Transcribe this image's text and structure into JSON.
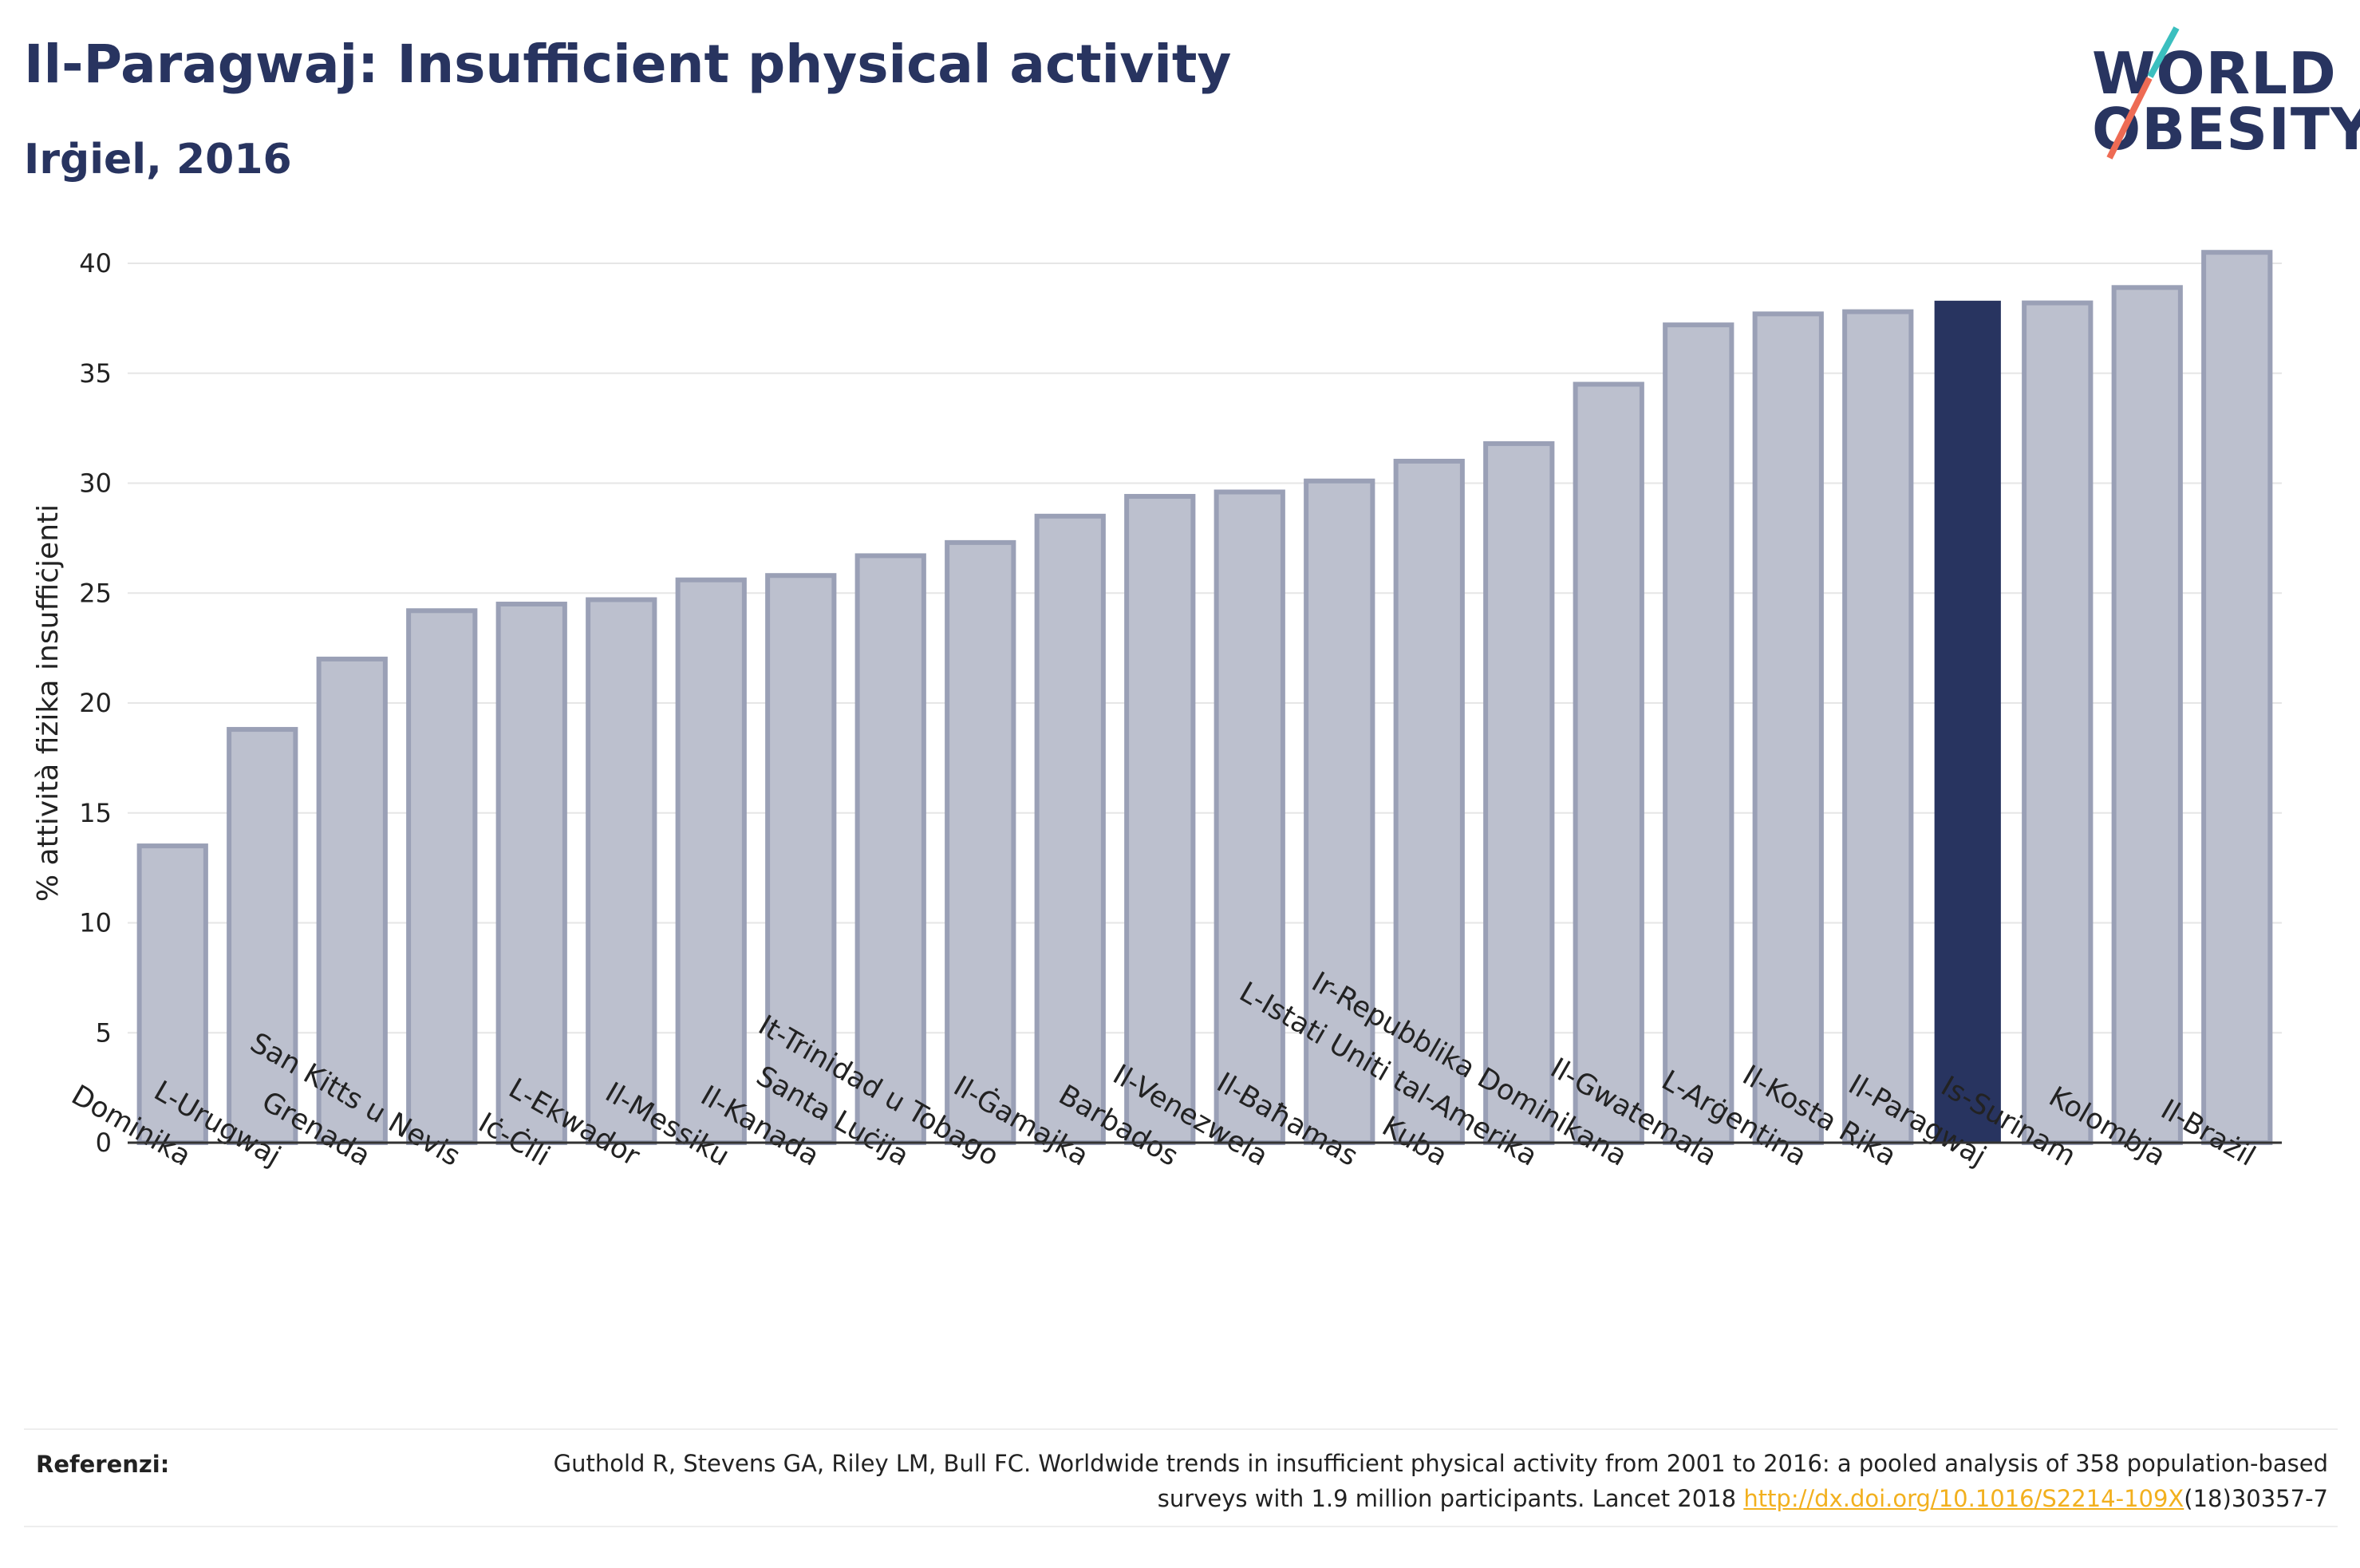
{
  "header": {
    "title": "Il-Paragwaj: Insufficient physical activity",
    "subtitle": "Irġiel, 2016"
  },
  "logo": {
    "line1": "WORLD",
    "line2": "OBESITY",
    "stripe_colors": [
      "#3bbfbf",
      "#ee6b54"
    ]
  },
  "colors": {
    "highlight": "#283460",
    "bar_fill": "#bcc0ce",
    "bar_stroke": "#9aa0b6",
    "text": "#283460"
  },
  "chart_data": {
    "type": "bar",
    "title": "Il-Paragwaj: Insufficient physical activity",
    "subtitle": "Irġiel, 2016",
    "xlabel": "",
    "ylabel": "% attività fiżika insuffiċjenti",
    "ylim": [
      0,
      40
    ],
    "yticks": [
      0,
      5,
      10,
      15,
      20,
      25,
      30,
      35,
      40
    ],
    "grid": true,
    "highlight": "Il-Paragwaj",
    "categories": [
      "Dominika",
      "L-Urugwaj",
      "Grenada",
      "San Kitts u Nevis",
      "Iċ-Ċili",
      "L-Ekwador",
      "Il-Messiku",
      "Il-Kanada",
      "Santa Luċija",
      "It-Trinidad u Tobago",
      "Il-Ġamajka",
      "Barbados",
      "Il-Venezwela",
      "Il-Baħamas",
      "Kuba",
      "L-Istati Uniti tal-Amerika",
      "Ir-Repubblika Dominikana",
      "Il-Gwatemala",
      "L-Arġentina",
      "Il-Kosta Rika",
      "Il-Paragwaj",
      "Is-Surinam",
      "Kolombja",
      "Il-Brażil"
    ],
    "values": [
      13.5,
      18.8,
      22.0,
      24.2,
      24.5,
      24.7,
      25.6,
      25.8,
      26.7,
      27.3,
      28.5,
      29.4,
      29.6,
      30.1,
      31.0,
      31.8,
      34.5,
      37.2,
      37.7,
      37.8,
      38.3,
      38.2,
      38.9,
      40.5
    ]
  },
  "footer": {
    "ref_label": "Referenzi:",
    "ref_text": "Guthold R, Stevens GA, Riley LM, Bull FC. Worldwide trends in insufficient physical activity from 2001 to 2016: a pooled analysis of 358 population-based surveys with 1.9 million participants. Lancet 2018 ",
    "ref_link": "http://dx.doi.org/10.1016/S2214-109X",
    "ref_tail": "(18)30357-7"
  }
}
